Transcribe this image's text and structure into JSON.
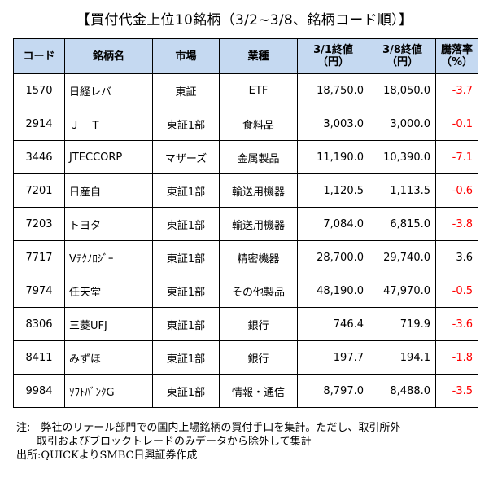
{
  "title": "【買付代金上位10銘柄（3/2~3/8、銘柄コード順）】",
  "headers": {
    "code": "コード",
    "name": "銘柄名",
    "market": "市場",
    "industry": "業種",
    "close1_line1": "3/1終値",
    "close1_line2": "（円）",
    "close2_line1": "3/8終値",
    "close2_line2": "（円）",
    "change_line1": "騰落率",
    "change_line2": "（%）"
  },
  "rows": [
    {
      "code": "1570",
      "name": "日経レバ",
      "market": "東証",
      "industry": "ETF",
      "close1": "18,750.0",
      "close2": "18,050.0",
      "change": "-3.7"
    },
    {
      "code": "2914",
      "name": "Ｊ　Ｔ",
      "market": "東証1部",
      "industry": "食料品",
      "close1": "3,003.0",
      "close2": "3,000.0",
      "change": "-0.1"
    },
    {
      "code": "3446",
      "name": "JTECCORP",
      "market": "マザーズ",
      "industry": "金属製品",
      "close1": "11,190.0",
      "close2": "10,390.0",
      "change": "-7.1"
    },
    {
      "code": "7201",
      "name": "日産自",
      "market": "東証1部",
      "industry": "輸送用機器",
      "close1": "1,120.5",
      "close2": "1,113.5",
      "change": "-0.6"
    },
    {
      "code": "7203",
      "name": "トヨタ",
      "market": "東証1部",
      "industry": "輸送用機器",
      "close1": "7,084.0",
      "close2": "6,815.0",
      "change": "-3.8"
    },
    {
      "code": "7717",
      "name": "Vﾃｸﾉﾛｼﾞｰ",
      "market": "東証1部",
      "industry": "精密機器",
      "close1": "28,700.0",
      "close2": "29,740.0",
      "change": "3.6"
    },
    {
      "code": "7974",
      "name": "任天堂",
      "market": "東証1部",
      "industry": "その他製品",
      "close1": "48,190.0",
      "close2": "47,970.0",
      "change": "-0.5"
    },
    {
      "code": "8306",
      "name": "三菱UFJ",
      "market": "東証1部",
      "industry": "銀行",
      "close1": "746.4",
      "close2": "719.9",
      "change": "-3.6"
    },
    {
      "code": "8411",
      "name": "みずほ",
      "market": "東証1部",
      "industry": "銀行",
      "close1": "197.7",
      "close2": "194.1",
      "change": "-1.8"
    },
    {
      "code": "9984",
      "name": "ｿﾌﾄﾊﾞﾝｸG",
      "market": "東証1部",
      "industry": "情報・通信",
      "close1": "8,797.0",
      "close2": "8,488.0",
      "change": "-3.5"
    }
  ],
  "notes": {
    "line1": "注:　弊社のリテール部門での国内上場銘柄の買付手口を集計。ただし、取引所外",
    "line2": "取引およびブロックトレードのみデータから除外して集計",
    "source": "出所:QUICKよりSMBC日興証券作成"
  },
  "colors": {
    "header_bg": "#c5d9f1",
    "negative": "#ff0000",
    "positive": "#000000"
  }
}
